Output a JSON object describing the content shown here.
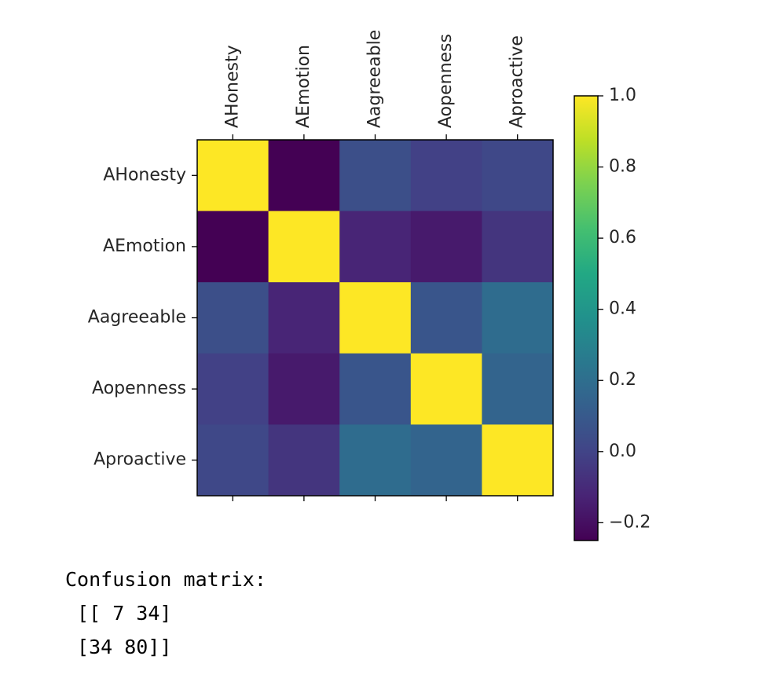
{
  "chart_data": {
    "type": "heatmap",
    "title": "",
    "x_labels": [
      "AHonesty",
      "AEmotion",
      "Aagreeable",
      "Aopenness",
      "Aproactive"
    ],
    "y_labels": [
      "AHonesty",
      "AEmotion",
      "Aagreeable",
      "Aopenness",
      "Aproactive"
    ],
    "values": [
      [
        1.0,
        -0.25,
        0.05,
        -0.01,
        0.02
      ],
      [
        -0.25,
        1.0,
        -0.12,
        -0.16,
        -0.06
      ],
      [
        0.05,
        -0.12,
        1.0,
        0.08,
        0.19
      ],
      [
        -0.01,
        -0.16,
        0.08,
        1.0,
        0.15
      ],
      [
        0.02,
        -0.06,
        0.19,
        0.15,
        1.0
      ]
    ],
    "colormap": "viridis",
    "color_range": [
      -0.25,
      1.0
    ],
    "colorbar_ticks": [
      1.0,
      0.8,
      0.6,
      0.4,
      0.2,
      0.0,
      -0.2
    ],
    "colorbar_tick_labels": [
      "1.0",
      "0.8",
      "0.6",
      "0.4",
      "0.2",
      "0.0",
      "−0.2"
    ],
    "x_tick_position": "top"
  },
  "output": {
    "header": "Confusion matrix:",
    "rows": [
      " [[ 7 34]",
      " [34 80]]"
    ]
  }
}
